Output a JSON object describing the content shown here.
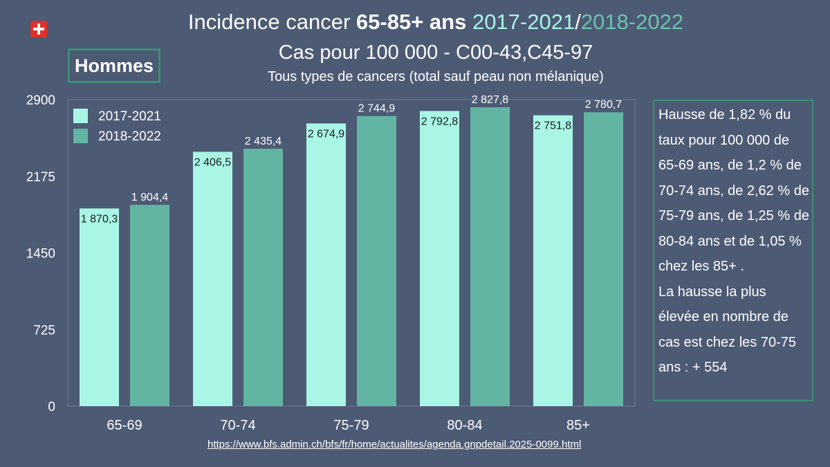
{
  "header": {
    "title_prefix": "Incidence cancer ",
    "title_bold": "65-85+ ans",
    "title_space": " ",
    "title_year1": "2017-2021",
    "title_sep": "/",
    "title_year2": "2018-2022",
    "subtitle": "Cas pour 100 000 - C00-43,C45-97",
    "subtitle2": "Tous types de cancers (total sauf peau non mélanique)",
    "badge": "Hommes"
  },
  "note": {
    "paragraph1": "Hausse de 1,82 % du taux pour 100 000 de 65-69 ans, de 1,2 % de 70-74 ans, de 2,62 % de 75-79 ans, de 1,25 % de 80-84 ans et de 1,05 % chez les 85+ .",
    "paragraph2": "La hausse la plus élevée en nombre de cas est chez les 70-75 ans : + 554"
  },
  "source": "https://www.bfs.admin.ch/bfs/fr/home/actualites/agenda.gnpdetail.2025-0099.html",
  "colors": {
    "series1": "#a9f5e6",
    "series2": "#62b5a3",
    "background": "#4c5a74",
    "accent_border": "#3d8f78"
  },
  "chart_data": {
    "type": "bar",
    "categories": [
      "65-69",
      "70-74",
      "75-79",
      "80-84",
      "85+"
    ],
    "series": [
      {
        "name": "2017-2021",
        "values": [
          1870.3,
          2406.5,
          2674.9,
          2792.8,
          2751.8
        ],
        "labels": [
          "1 870,3",
          "2 406,5",
          "2 674,9",
          "2 792,8",
          "2 751,8"
        ]
      },
      {
        "name": "2018-2022",
        "values": [
          1904.4,
          2435.4,
          2744.9,
          2827.8,
          2780.7
        ],
        "labels": [
          "1 904,4",
          "2 435,4",
          "2 744,9",
          "2 827,8",
          "2 780,7"
        ]
      }
    ],
    "yticks": [
      0,
      725,
      1450,
      2175,
      2900
    ],
    "ytick_labels": [
      "0",
      "725",
      "1450",
      "2175",
      "2900"
    ],
    "ylim": [
      0,
      2900
    ],
    "legend": "top-left",
    "grid": false
  }
}
